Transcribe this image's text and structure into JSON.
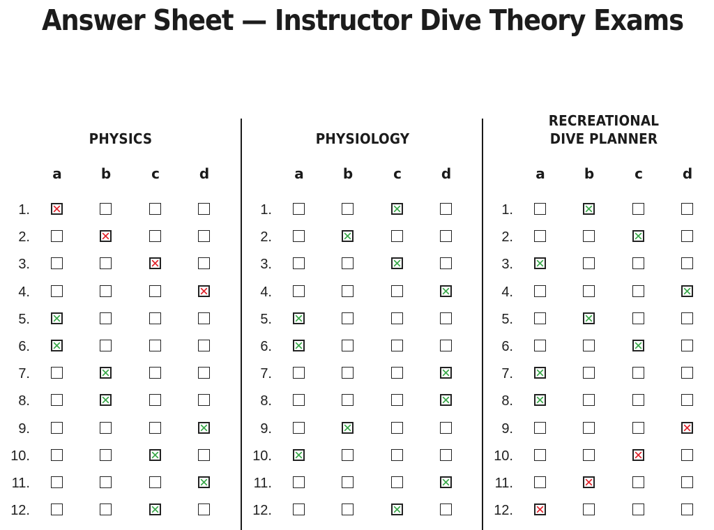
{
  "title": "Answer Sheet — Instructor Dive Theory Exams",
  "options": [
    "a",
    "b",
    "c",
    "d"
  ],
  "colors": {
    "correct": "#3aa84a",
    "wrong": "#e0242c",
    "ink": "#1b1b1b"
  },
  "sections": [
    {
      "title_lines": [
        "PHYSICS"
      ],
      "answers": [
        {
          "n": "1.",
          "choice": "a",
          "mark": "wrong"
        },
        {
          "n": "2.",
          "choice": "b",
          "mark": "wrong"
        },
        {
          "n": "3.",
          "choice": "c",
          "mark": "wrong"
        },
        {
          "n": "4.",
          "choice": "d",
          "mark": "wrong"
        },
        {
          "n": "5.",
          "choice": "a",
          "mark": "correct"
        },
        {
          "n": "6.",
          "choice": "a",
          "mark": "correct"
        },
        {
          "n": "7.",
          "choice": "b",
          "mark": "correct"
        },
        {
          "n": "8.",
          "choice": "b",
          "mark": "correct"
        },
        {
          "n": "9.",
          "choice": "d",
          "mark": "correct"
        },
        {
          "n": "10.",
          "choice": "c",
          "mark": "correct"
        },
        {
          "n": "11.",
          "choice": "d",
          "mark": "correct"
        },
        {
          "n": "12.",
          "choice": "c",
          "mark": "correct"
        }
      ]
    },
    {
      "title_lines": [
        "PHYSIOLOGY"
      ],
      "answers": [
        {
          "n": "1.",
          "choice": "c",
          "mark": "correct"
        },
        {
          "n": "2.",
          "choice": "b",
          "mark": "correct"
        },
        {
          "n": "3.",
          "choice": "c",
          "mark": "correct"
        },
        {
          "n": "4.",
          "choice": "d",
          "mark": "correct"
        },
        {
          "n": "5.",
          "choice": "a",
          "mark": "correct"
        },
        {
          "n": "6.",
          "choice": "a",
          "mark": "correct"
        },
        {
          "n": "7.",
          "choice": "d",
          "mark": "correct"
        },
        {
          "n": "8.",
          "choice": "d",
          "mark": "correct"
        },
        {
          "n": "9.",
          "choice": "b",
          "mark": "correct"
        },
        {
          "n": "10.",
          "choice": "a",
          "mark": "correct"
        },
        {
          "n": "11.",
          "choice": "d",
          "mark": "correct"
        },
        {
          "n": "12.",
          "choice": "c",
          "mark": "correct"
        }
      ]
    },
    {
      "title_lines": [
        "RECREATIONAL",
        "DIVE PLANNER"
      ],
      "answers": [
        {
          "n": "1.",
          "choice": "b",
          "mark": "correct"
        },
        {
          "n": "2.",
          "choice": "c",
          "mark": "correct"
        },
        {
          "n": "3.",
          "choice": "a",
          "mark": "correct"
        },
        {
          "n": "4.",
          "choice": "d",
          "mark": "correct"
        },
        {
          "n": "5.",
          "choice": "b",
          "mark": "correct"
        },
        {
          "n": "6.",
          "choice": "c",
          "mark": "correct"
        },
        {
          "n": "7.",
          "choice": "a",
          "mark": "correct"
        },
        {
          "n": "8.",
          "choice": "a",
          "mark": "correct"
        },
        {
          "n": "9.",
          "choice": "d",
          "mark": "wrong"
        },
        {
          "n": "10.",
          "choice": "c",
          "mark": "wrong"
        },
        {
          "n": "11.",
          "choice": "b",
          "mark": "wrong"
        },
        {
          "n": "12.",
          "choice": "a",
          "mark": "wrong"
        }
      ]
    }
  ]
}
